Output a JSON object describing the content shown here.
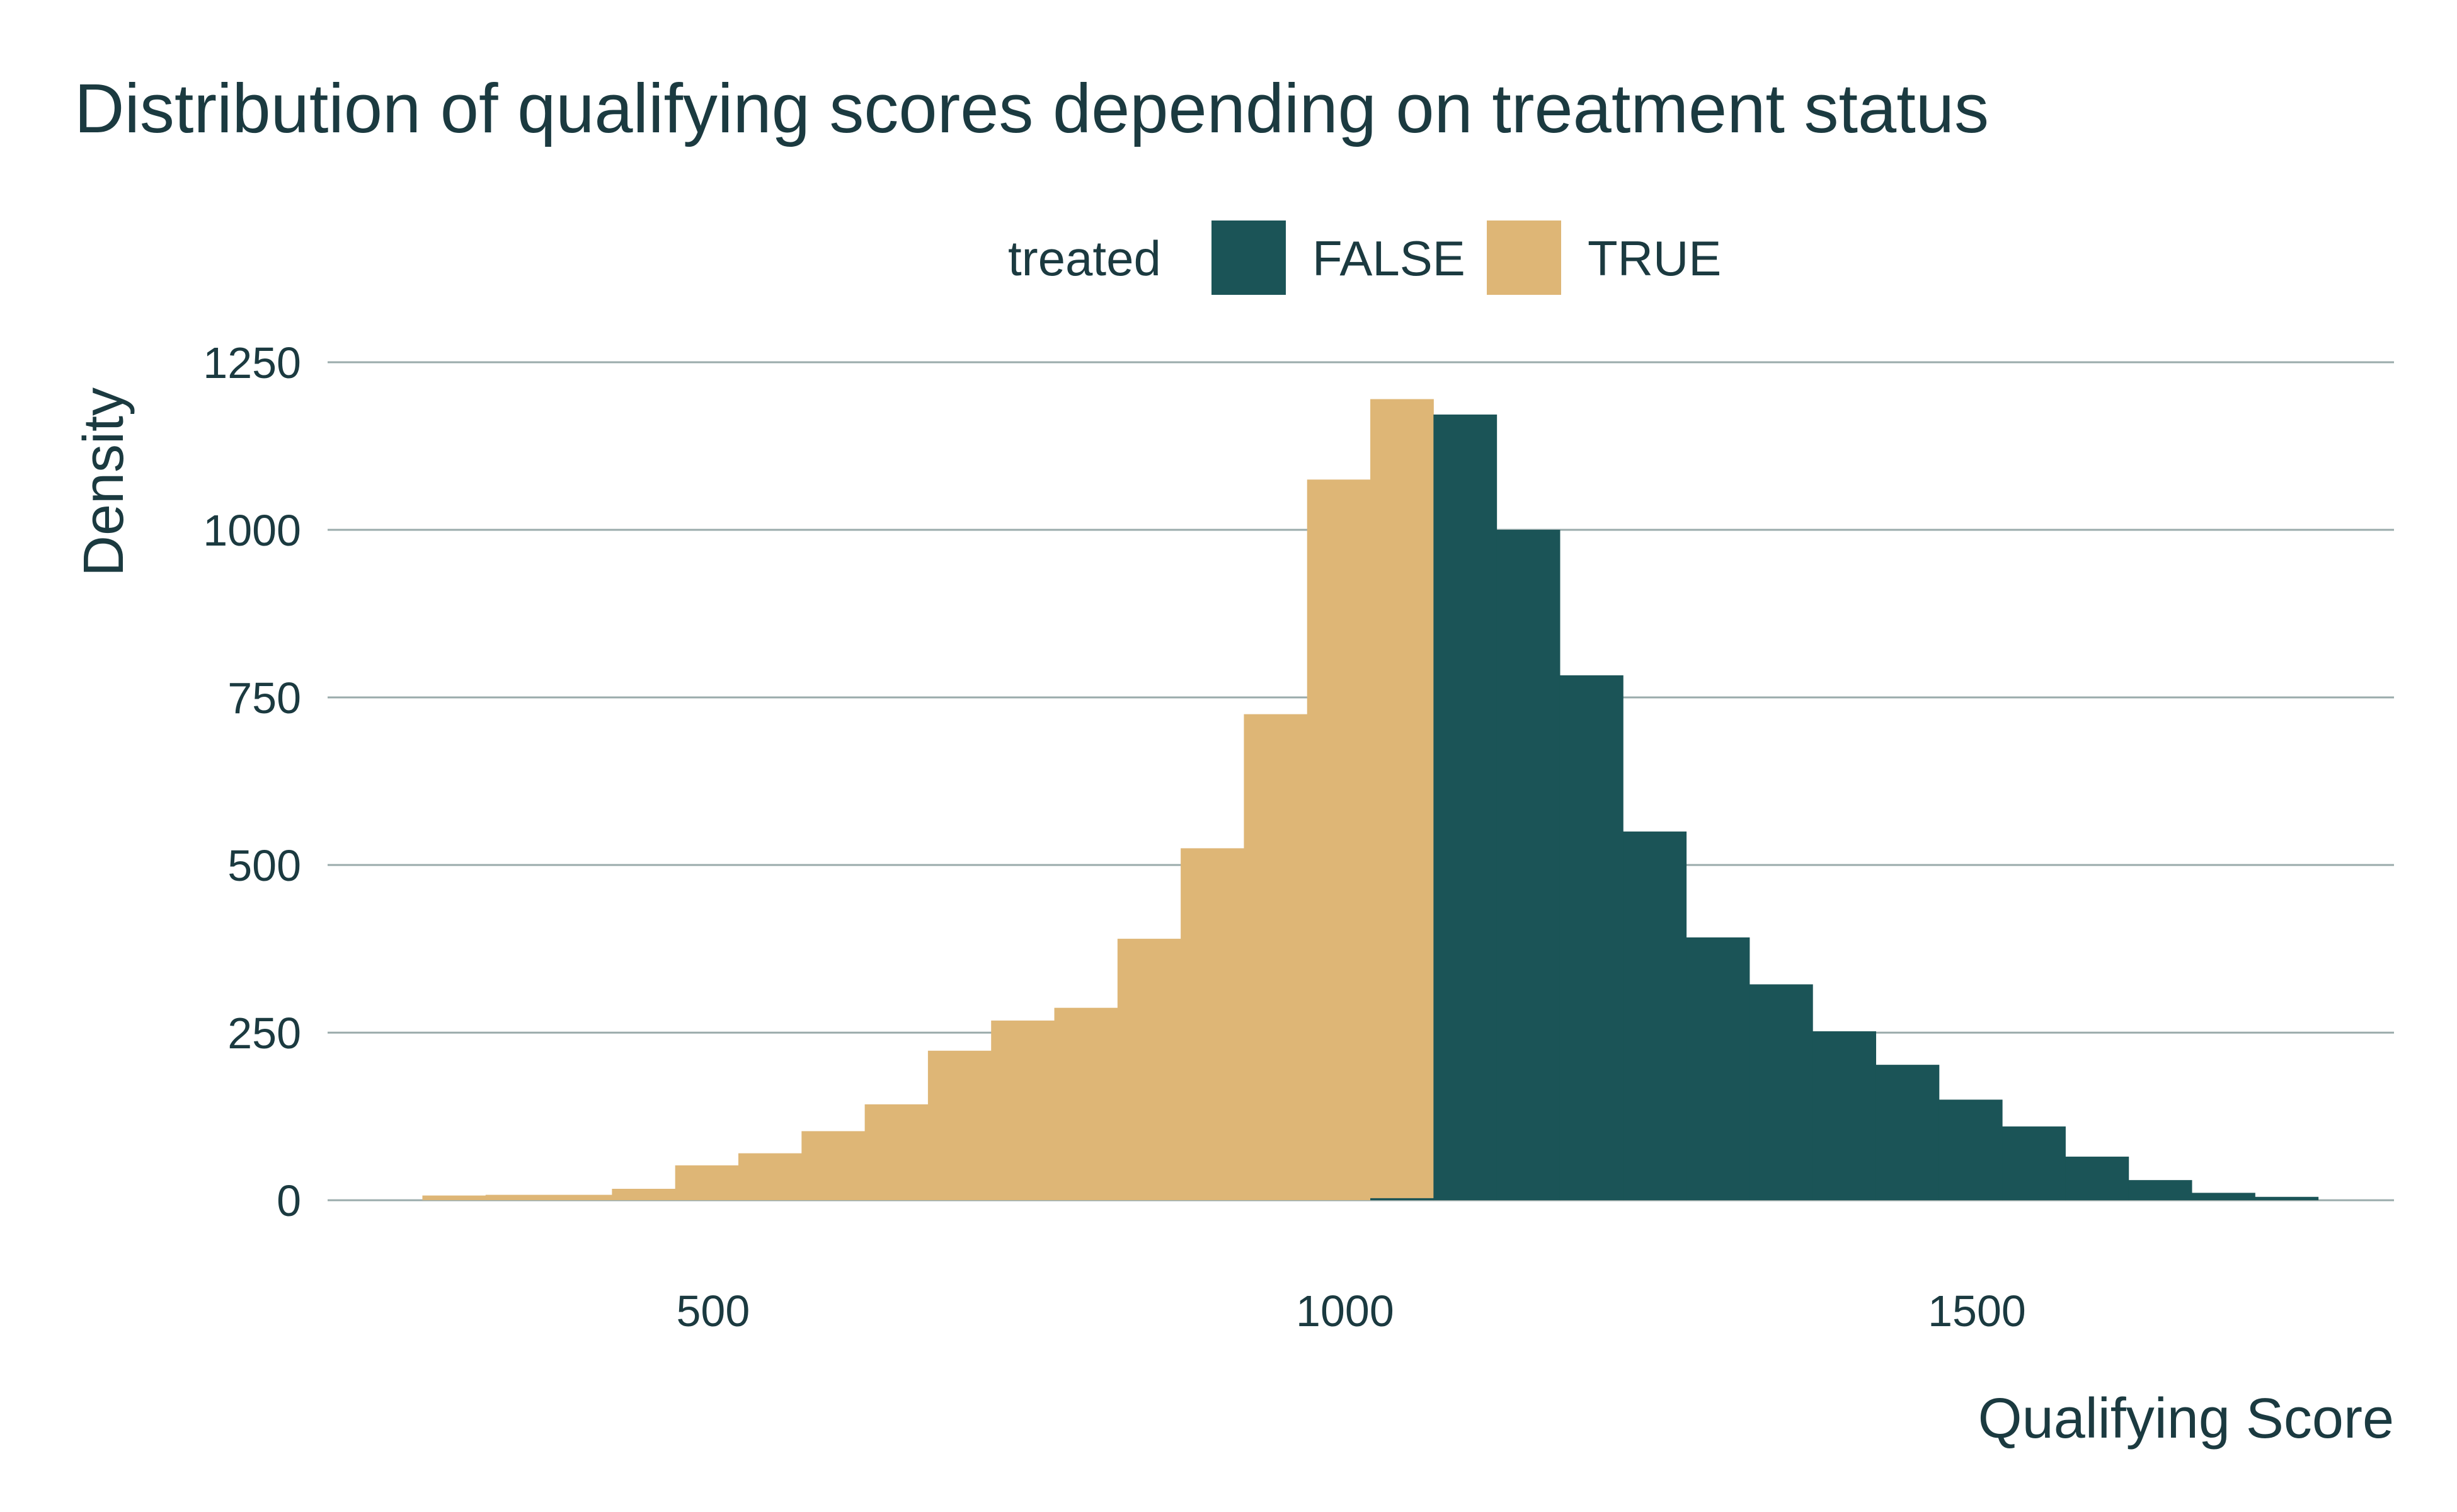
{
  "chart_data": {
    "type": "bar",
    "title": "Distribution of qualifying scores depending on treatment status",
    "xlabel": "Qualifying Score",
    "ylabel": "Density",
    "legend": {
      "title": "treated",
      "placement": "top",
      "entries": [
        {
          "label": "FALSE",
          "color": "#1b5457"
        },
        {
          "label": "TRUE",
          "color": "#deb676"
        }
      ]
    },
    "xlim": [
      195,
      1830
    ],
    "ylim": [
      -30,
      1250
    ],
    "x_ticks": [
      500,
      1000,
      1500
    ],
    "x_tick_labels": [
      "500",
      "1000",
      "1500"
    ],
    "y_ticks": [
      0,
      250,
      500,
      750,
      1000,
      1250
    ],
    "y_tick_labels": [
      "0",
      "250",
      "500",
      "750",
      "1000",
      "1250"
    ],
    "grid": "horizontal",
    "bin_edges": [
      270,
      320,
      370,
      420,
      470,
      520,
      570,
      620,
      670,
      720,
      770,
      820,
      870,
      920,
      970,
      1020,
      1070,
      1120,
      1170,
      1220,
      1270,
      1320,
      1370,
      1420,
      1470,
      1520,
      1570,
      1620,
      1670,
      1720,
      1770
    ],
    "series": [
      {
        "name": "TRUE",
        "color": "#deb676",
        "values": [
          7,
          8,
          8,
          17,
          52,
          70,
          103,
          143,
          223,
          268,
          287,
          390,
          525,
          725,
          1075,
          1195,
          3,
          3,
          3,
          3,
          3,
          3,
          3,
          3,
          3,
          3,
          3,
          3,
          3,
          3
        ]
      },
      {
        "name": "FALSE",
        "color": "#1b5457",
        "values": [
          0,
          0,
          0,
          0,
          0,
          0,
          0,
          0,
          0,
          0,
          0,
          0,
          0,
          0,
          0,
          3,
          1172,
          1000,
          783,
          550,
          392,
          322,
          252,
          202,
          150,
          110,
          65,
          30,
          11,
          5
        ]
      }
    ]
  }
}
